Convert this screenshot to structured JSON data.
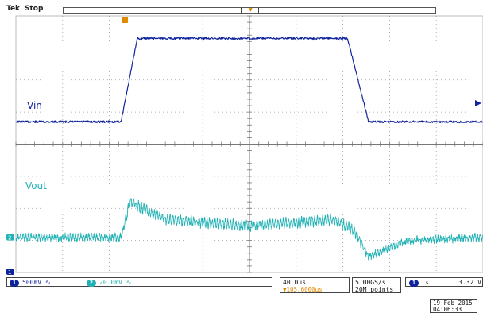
{
  "header": {
    "brand": "Tek",
    "status": "Stop"
  },
  "colors": {
    "ch1": "#0f239c",
    "ch2": "#22b2b5",
    "trigger": "#e08a00",
    "grid": "#9a9a9a"
  },
  "channels": [
    {
      "number": "1",
      "scale": "500mV",
      "label": "Vin",
      "color": "#0f239c"
    },
    {
      "number": "2",
      "scale": "20.0mV",
      "label": "Vout",
      "color": "#22b2b5"
    }
  ],
  "timebase": {
    "scale": "40.0µs",
    "delay": "▼105.6000µs"
  },
  "acquisition": {
    "rate": "5.00GS/s",
    "points": "20M points"
  },
  "trigger": {
    "channel": "1",
    "slope_icon": "rising-edge-icon",
    "level": "3.32 V"
  },
  "timestamp": {
    "date": "19 Feb  2015",
    "time": "04:06:33"
  },
  "chart_data": {
    "type": "line",
    "divisions": {
      "x": 10,
      "y": 8
    },
    "grid": true,
    "series": [
      {
        "name": "Vin",
        "x_div": [
          0,
          2.25,
          2.6,
          7.1,
          7.55,
          10
        ],
        "y_div": [
          0.25,
          0.25,
          2.85,
          2.85,
          0.25,
          0.25
        ]
      },
      {
        "name": "Vout",
        "x_div": [
          0,
          2.25,
          2.45,
          3.2,
          5,
          6.8,
          7.25,
          7.55,
          8.4,
          10
        ],
        "y_div": [
          0,
          0,
          1.1,
          0.55,
          0.35,
          0.55,
          0.2,
          -0.6,
          -0.1,
          0
        ]
      }
    ]
  }
}
